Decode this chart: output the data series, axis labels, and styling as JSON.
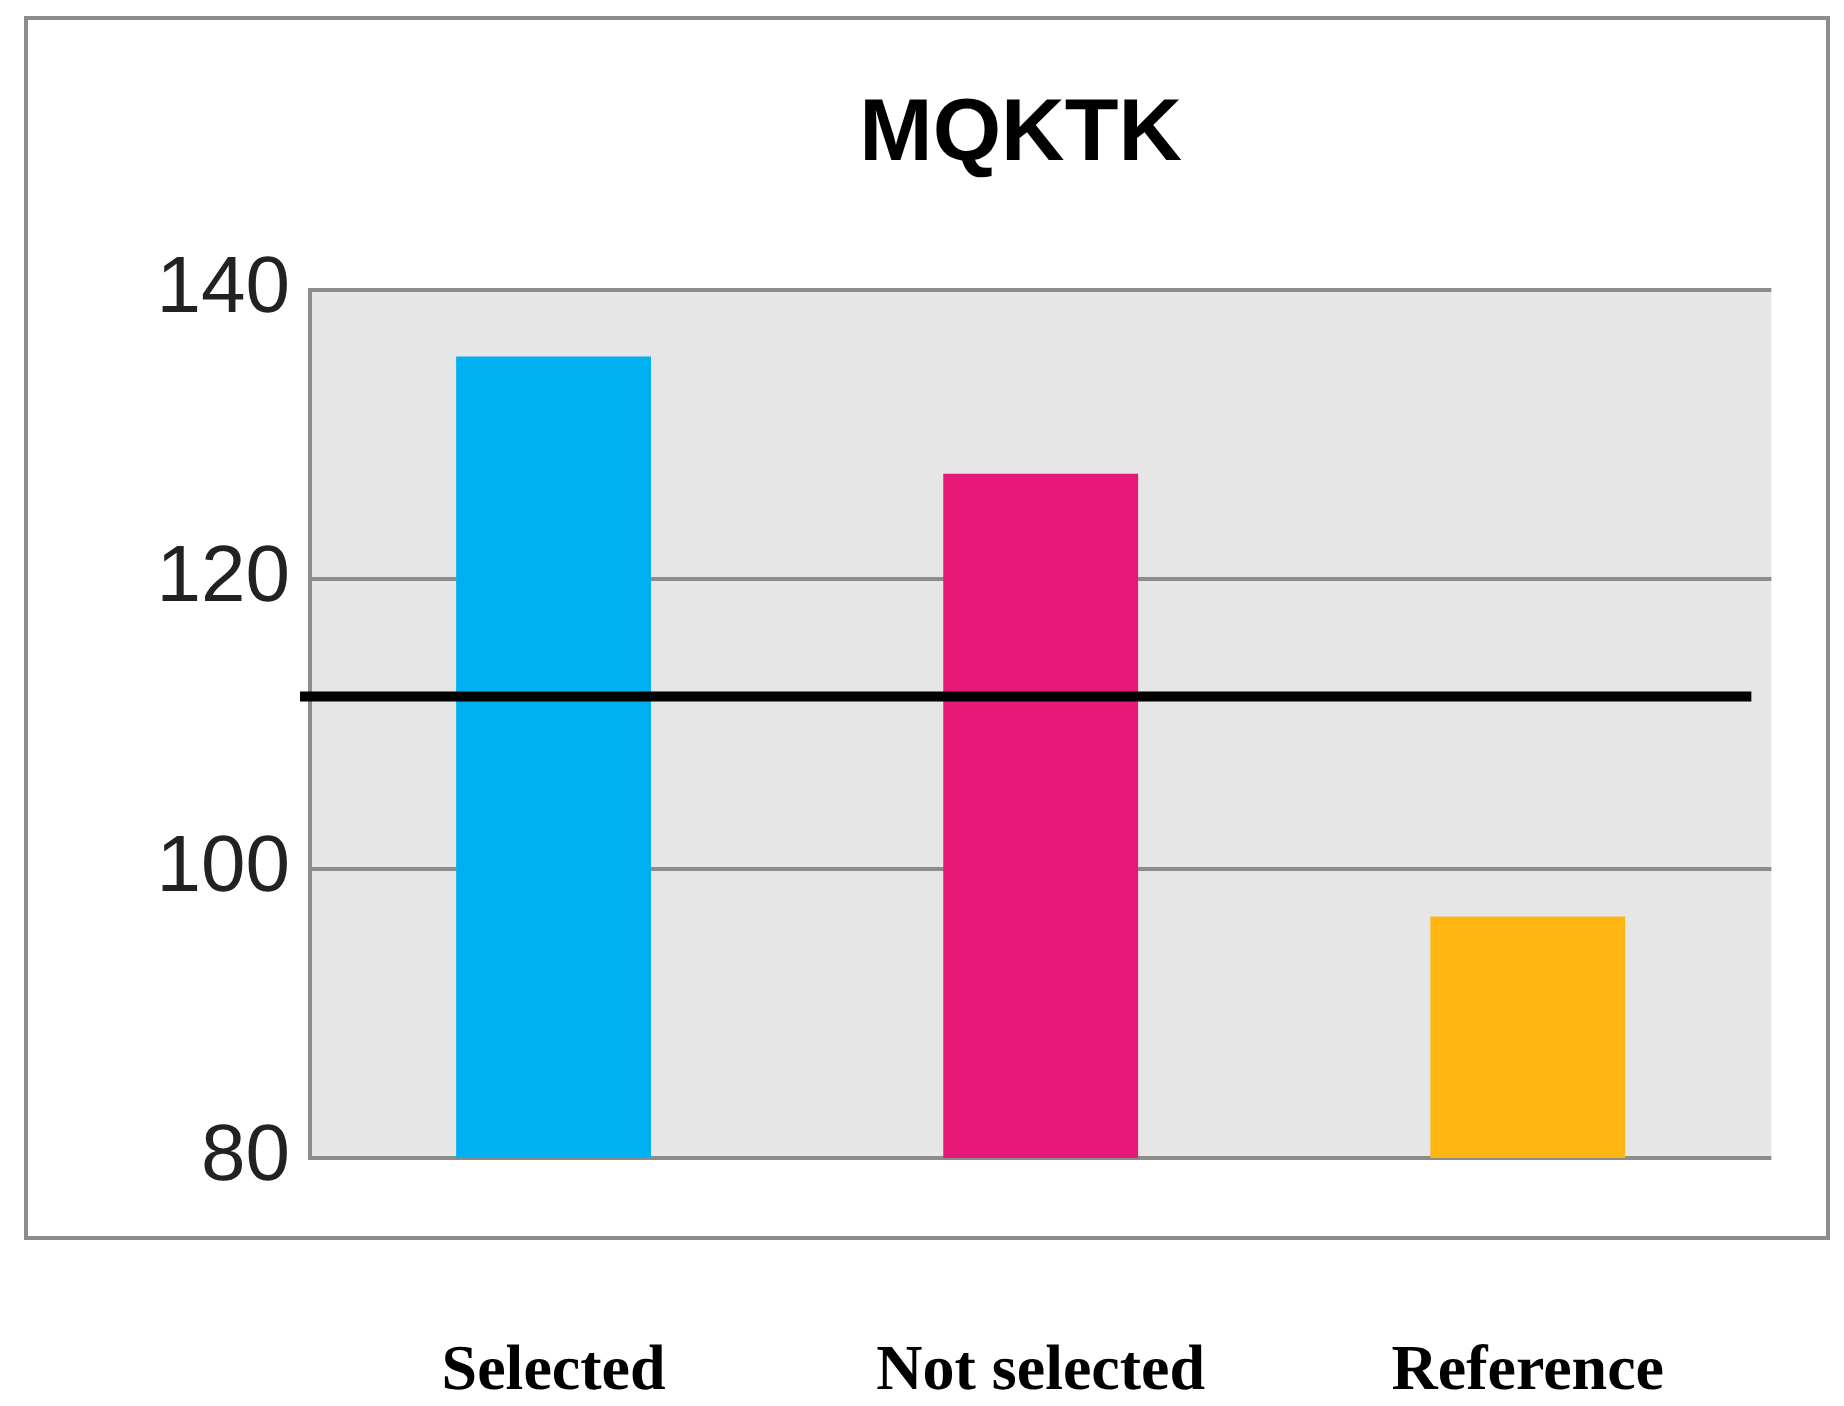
{
  "chart_data": {
    "type": "bar",
    "title": "MQKTK",
    "categories": [
      "Selected",
      "Not selected",
      "Reference"
    ],
    "values": [
      135.4,
      127.3,
      96.7
    ],
    "colors": [
      "#00b0f0",
      "#e8177a",
      "#ffb612"
    ],
    "ylim": [
      80,
      140
    ],
    "yticks": [
      80,
      100,
      120,
      140
    ],
    "grid": "y",
    "legend": false,
    "ref_lines": [
      {
        "axis": "y",
        "value": 111.9,
        "color": "#000000"
      }
    ]
  }
}
